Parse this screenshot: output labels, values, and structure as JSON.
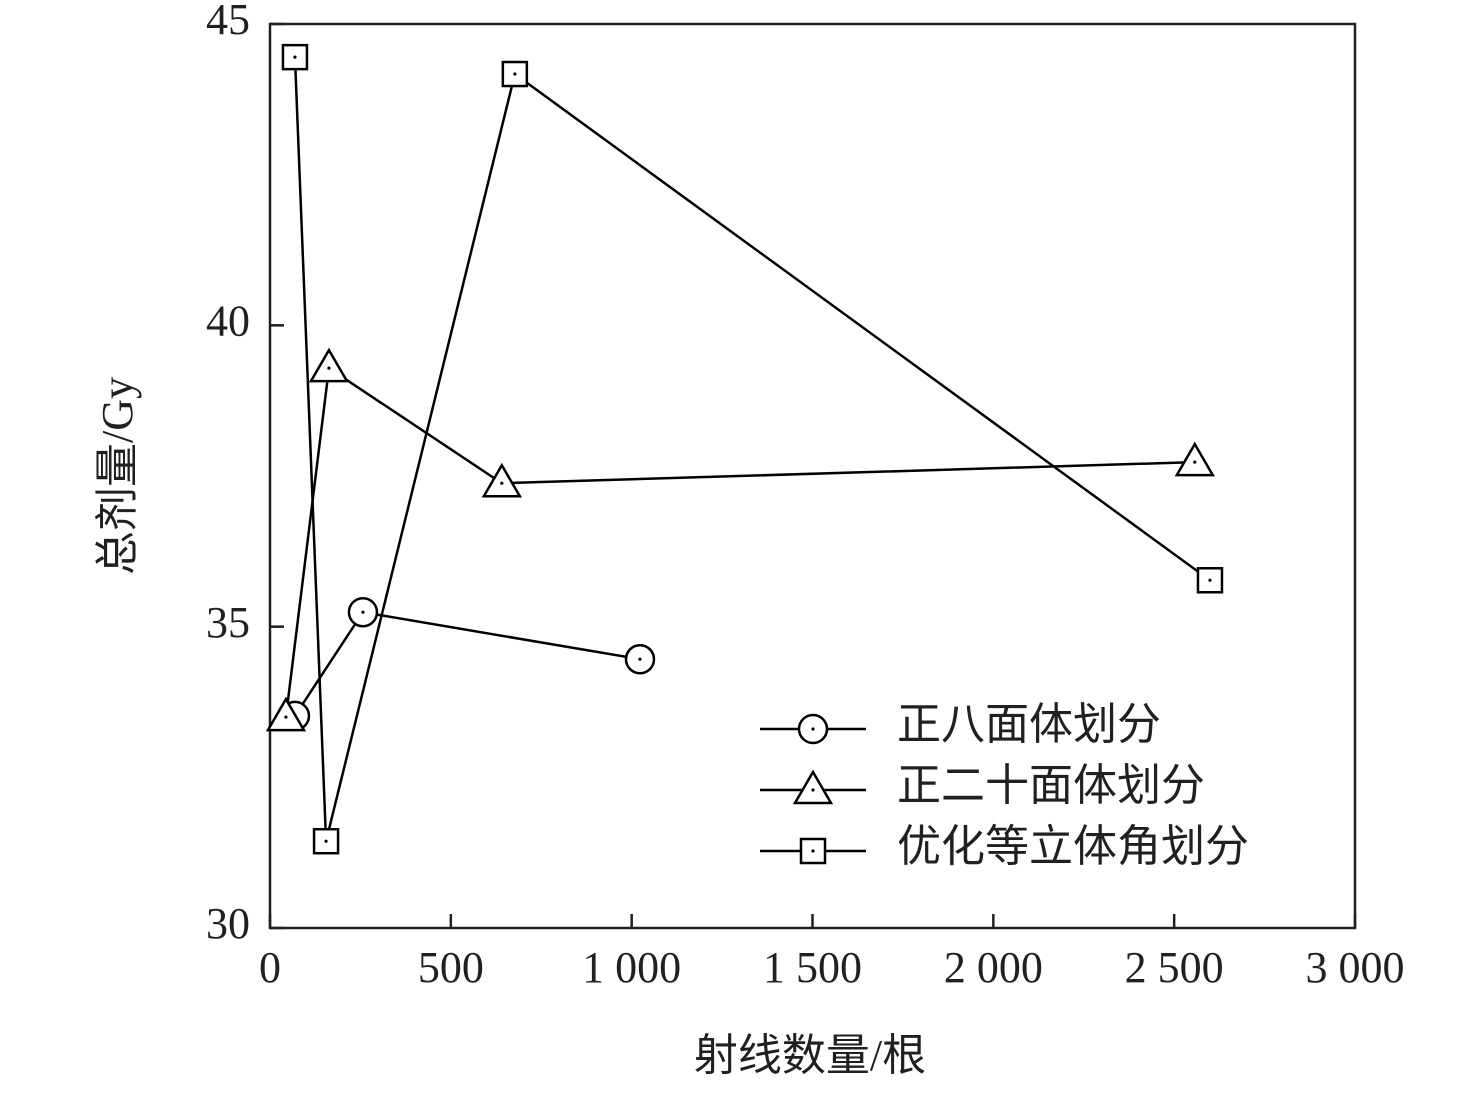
{
  "chart_data": {
    "type": "line",
    "xlabel": "射线数量/根",
    "ylabel": "总剂量/Gy",
    "xlim": [
      0,
      3000
    ],
    "ylim": [
      30,
      45
    ],
    "xticks": [
      0,
      500,
      {
        "value": 1000,
        "label": "1 000"
      },
      {
        "value": 1500,
        "label": "1 500"
      },
      {
        "value": 2000,
        "label": "2 000"
      },
      {
        "value": 2500,
        "label": "2 500"
      },
      {
        "value": 3000,
        "label": "3 000"
      }
    ],
    "yticks": [
      30,
      35,
      40,
      45
    ],
    "legend": "lower right",
    "series": [
      {
        "name": "正八面体划分",
        "color": "#000000",
        "marker": "circle",
        "x": [
          69,
          257,
          1023
        ],
        "values": [
          33.52,
          35.24,
          34.46
        ]
      },
      {
        "name": "正二十面体划分",
        "color": "#000000",
        "marker": "triangle",
        "x": [
          44,
          163,
          641,
          2557
        ],
        "values": [
          33.5,
          39.29,
          37.38,
          37.73
        ]
      },
      {
        "name": "优化等立体角划分",
        "color": "#000000",
        "marker": "square",
        "x": [
          69,
          155,
          677,
          2599
        ],
        "values": [
          44.45,
          31.44,
          44.17,
          35.77
        ]
      }
    ]
  }
}
